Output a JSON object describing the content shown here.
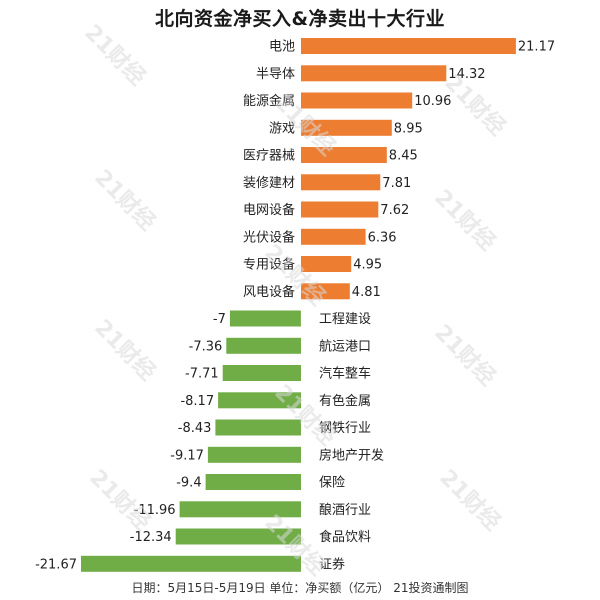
{
  "title": "北向资金净买入&净卖出十大行业",
  "footer": "日期：5月15日-5月19日 单位：净买额（亿元） 21投资通制图",
  "watermark_text": "21财经",
  "colors": {
    "positive": "#ED7D31",
    "negative": "#70AD47",
    "watermark": "#d9d9d9",
    "text": "#222222"
  },
  "chart_data": {
    "type": "bar",
    "orientation": "horizontal",
    "title": "北向资金净买入&净卖出十大行业",
    "unit": "净买额（亿元）",
    "categories": [
      "电池",
      "半导体",
      "能源金属",
      "游戏",
      "医疗器械",
      "装修建材",
      "电网设备",
      "光伏设备",
      "专用设备",
      "风电设备",
      "工程建设",
      "航运港口",
      "汽车整车",
      "有色金属",
      "钢铁行业",
      "房地产开发",
      "保险",
      "酿酒行业",
      "食品饮料",
      "证券"
    ],
    "values": [
      21.17,
      14.32,
      10.96,
      8.95,
      8.45,
      7.81,
      7.62,
      6.36,
      4.95,
      4.81,
      -7,
      -7.36,
      -7.71,
      -8.17,
      -8.43,
      -9.17,
      -9.4,
      -11.96,
      -12.34,
      -21.67
    ],
    "value_labels": [
      "21.17",
      "14.32",
      "10.96",
      "8.95",
      "8.45",
      "7.81",
      "7.62",
      "6.36",
      "4.95",
      "4.81",
      "-7",
      "-7.36",
      "-7.71",
      "-8.17",
      "-8.43",
      "-9.17",
      "-9.4",
      "-11.96",
      "-12.34",
      "-21.67"
    ],
    "xlim": [
      -22,
      22
    ],
    "grid": false,
    "legend": "none",
    "data_labels": true
  }
}
